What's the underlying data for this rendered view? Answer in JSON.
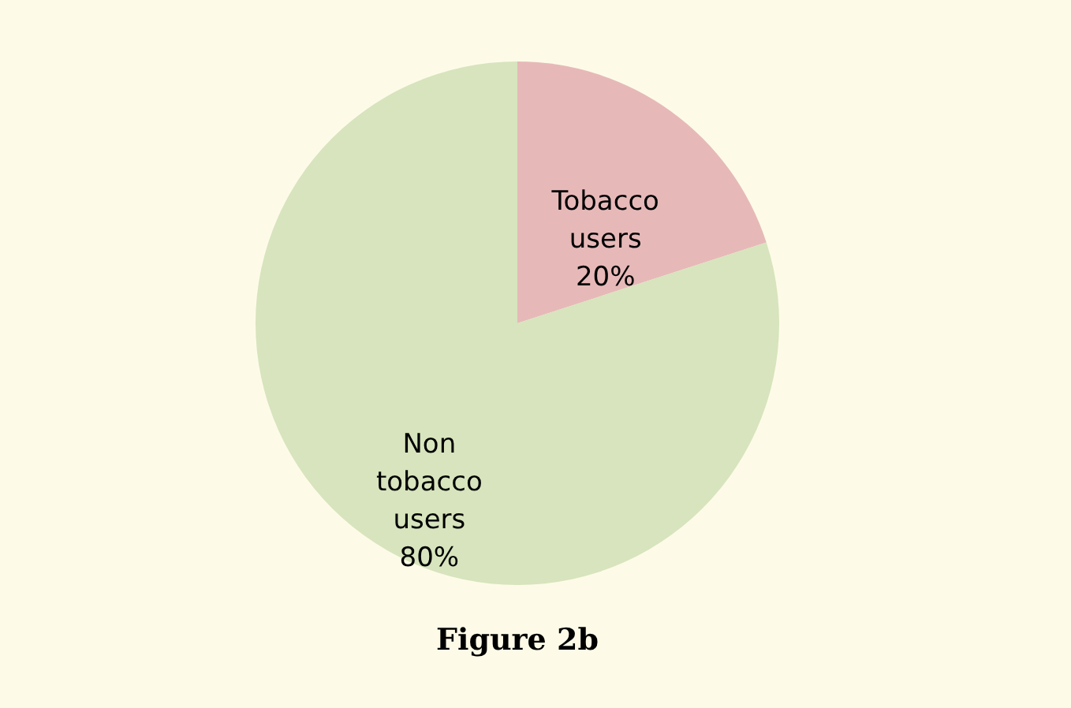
{
  "chart_data": {
    "type": "pie",
    "categories": [
      "Tobacco users",
      "Non tobacco users"
    ],
    "values": [
      20,
      80
    ],
    "colors": [
      "#e6b9b8",
      "#d7e4bd"
    ],
    "value_labels": [
      "20%",
      "80%"
    ],
    "legend": false,
    "annotations": [
      "Figure 2b"
    ]
  }
}
